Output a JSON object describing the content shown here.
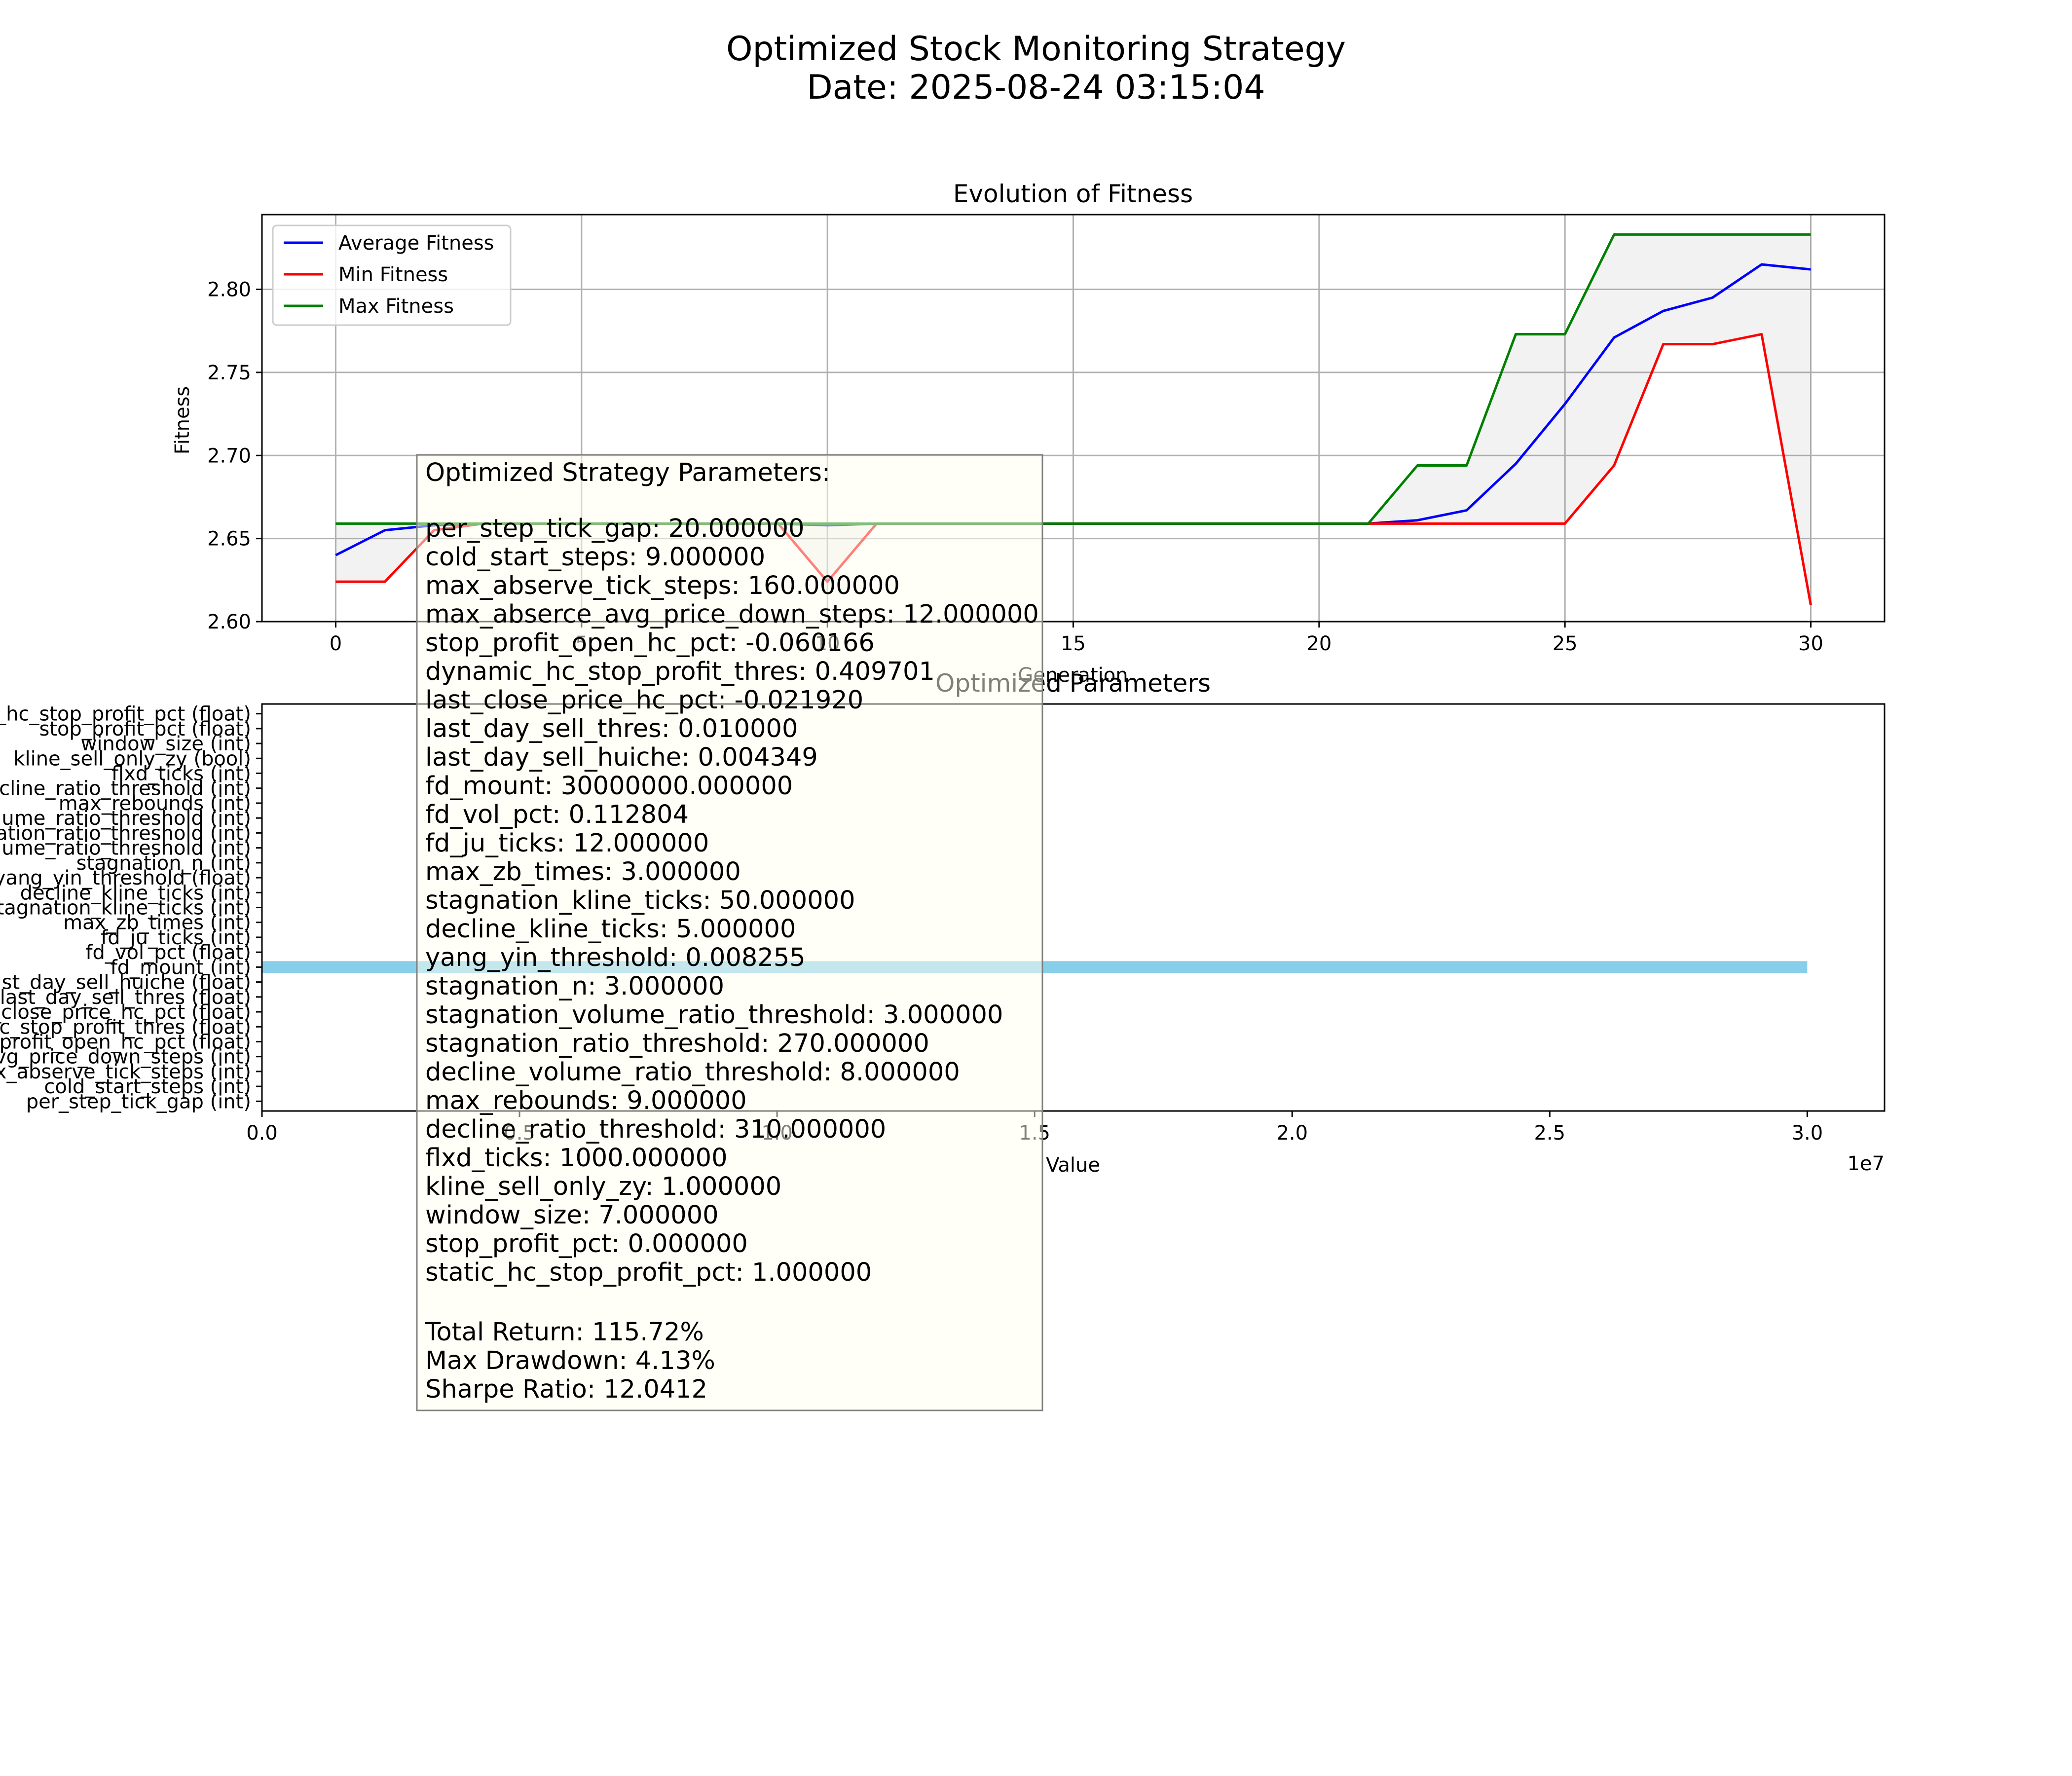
{
  "figure": {
    "title_line1": "Optimized Stock Monitoring Strategy",
    "title_line2": "Date: 2025-08-24 03:15:04"
  },
  "chart_data": [
    {
      "type": "line",
      "title": "Evolution of Fitness",
      "xlabel": "Generation",
      "ylabel": "Fitness",
      "xlim": [
        -1.5,
        31.5
      ],
      "ylim": [
        2.6,
        2.845
      ],
      "xticks": [
        0,
        5,
        10,
        15,
        20,
        25,
        30
      ],
      "yticks": [
        2.6,
        2.65,
        2.7,
        2.75,
        2.8
      ],
      "ytick_labels": [
        "2.60",
        "2.65",
        "2.70",
        "2.75",
        "2.80"
      ],
      "grid": true,
      "legend_position": "top-left",
      "fill_between": [
        "Min Fitness",
        "Max Fitness"
      ],
      "x": [
        0,
        1,
        2,
        3,
        4,
        5,
        6,
        7,
        8,
        9,
        10,
        11,
        12,
        13,
        14,
        15,
        16,
        17,
        18,
        19,
        20,
        21,
        22,
        23,
        24,
        25,
        26,
        27,
        28,
        29,
        30
      ],
      "series": [
        {
          "name": "Average Fitness",
          "color": "#0000ff",
          "values": [
            2.64,
            2.655,
            2.658,
            2.659,
            2.659,
            2.659,
            2.659,
            2.659,
            2.659,
            2.659,
            2.658,
            2.659,
            2.659,
            2.659,
            2.659,
            2.659,
            2.659,
            2.659,
            2.659,
            2.659,
            2.659,
            2.659,
            2.661,
            2.667,
            2.695,
            2.731,
            2.771,
            2.787,
            2.795,
            2.815,
            2.812
          ]
        },
        {
          "name": "Min Fitness",
          "color": "#ff0000",
          "values": [
            2.624,
            2.624,
            2.655,
            2.659,
            2.659,
            2.659,
            2.659,
            2.659,
            2.659,
            2.659,
            2.624,
            2.659,
            2.659,
            2.659,
            2.659,
            2.659,
            2.659,
            2.659,
            2.659,
            2.659,
            2.659,
            2.659,
            2.659,
            2.659,
            2.659,
            2.659,
            2.694,
            2.767,
            2.767,
            2.773,
            2.61
          ]
        },
        {
          "name": "Max Fitness",
          "color": "#008000",
          "values": [
            2.659,
            2.659,
            2.659,
            2.659,
            2.659,
            2.659,
            2.659,
            2.659,
            2.659,
            2.659,
            2.659,
            2.659,
            2.659,
            2.659,
            2.659,
            2.659,
            2.659,
            2.659,
            2.659,
            2.659,
            2.659,
            2.659,
            2.694,
            2.694,
            2.773,
            2.773,
            2.833,
            2.833,
            2.833,
            2.833,
            2.833
          ]
        }
      ]
    },
    {
      "type": "bar",
      "orientation": "horizontal",
      "title": "Optimized Parameters",
      "xlabel": "Value",
      "x_offset_text": "1e7",
      "xlim": [
        0,
        31500000.0
      ],
      "xticks": [
        0,
        5000000.0,
        10000000.0,
        15000000.0,
        20000000.0,
        25000000.0,
        30000000.0
      ],
      "xtick_labels": [
        "0.0",
        "0.5",
        "1.0",
        "1.5",
        "2.0",
        "2.5",
        "3.0"
      ],
      "bar_color": "#87ceeb",
      "categories": [
        "per_step_tick_gap (int)",
        "cold_start_steps (int)",
        "max_abserve_tick_steps (int)",
        "max_absence_avg_price_down_steps (int)",
        "stop_profit_open_hc_pct (float)",
        "dynamic_hc_stop_profit_thres (float)",
        "last_close_price_hc_pct (float)",
        "last_day_sell_thres (float)",
        "last_day_sell_huiche (float)",
        "fd_mount (int)",
        "fd_vol_pct (float)",
        "fd_ju_ticks (int)",
        "max_zb_times (int)",
        "stagnation_kline_ticks (int)",
        "decline_kline_ticks (int)",
        "yang_yin_threshold (float)",
        "stagnation_n (int)",
        "stagnation_volume_ratio_threshold (int)",
        "stagnation_ratio_threshold (int)",
        "decline_volume_ratio_threshold (int)",
        "max_rebounds (int)",
        "decline_ratio_threshold (int)",
        "flxd_ticks (int)",
        "kline_sell_only_zy (bool)",
        "window_size (int)",
        "stop_profit_pct (float)",
        "static_hc_stop_profit_pct (float)"
      ],
      "values": [
        20,
        9,
        160,
        12,
        -0.060166,
        0.409701,
        -0.02192,
        0.01,
        0.004349,
        30000000,
        0.112804,
        12,
        3,
        50,
        5,
        0.008255,
        3,
        3,
        270,
        8,
        9,
        310,
        1000,
        1,
        7,
        0,
        1
      ]
    }
  ],
  "params_box": {
    "header": "Optimized Strategy Parameters:",
    "lines": [
      "per_step_tick_gap: 20.000000",
      "cold_start_steps: 9.000000",
      "max_abserve_tick_steps: 160.000000",
      "max_abserce_avg_price_down_steps: 12.000000",
      "stop_profit_open_hc_pct: -0.060166",
      "dynamic_hc_stop_profit_thres: 0.409701",
      "last_close_price_hc_pct: -0.021920",
      "last_day_sell_thres: 0.010000",
      "last_day_sell_huiche: 0.004349",
      "fd_mount: 30000000.000000",
      "fd_vol_pct: 0.112804",
      "fd_ju_ticks: 12.000000",
      "max_zb_times: 3.000000",
      "stagnation_kline_ticks: 50.000000",
      "decline_kline_ticks: 5.000000",
      "yang_yin_threshold: 0.008255",
      "stagnation_n: 3.000000",
      "stagnation_volume_ratio_threshold: 3.000000",
      "stagnation_ratio_threshold: 270.000000",
      "decline_volume_ratio_threshold: 8.000000",
      "max_rebounds: 9.000000",
      "decline_ratio_threshold: 310.000000",
      "flxd_ticks: 1000.000000",
      "kline_sell_only_zy: 1.000000",
      "window_size: 7.000000",
      "stop_profit_pct: 0.000000",
      "static_hc_stop_profit_pct: 1.000000"
    ],
    "summary": [
      "Total Return: 115.72%",
      "Max Drawdown: 4.13%",
      "Sharpe Ratio: 12.0412"
    ]
  }
}
